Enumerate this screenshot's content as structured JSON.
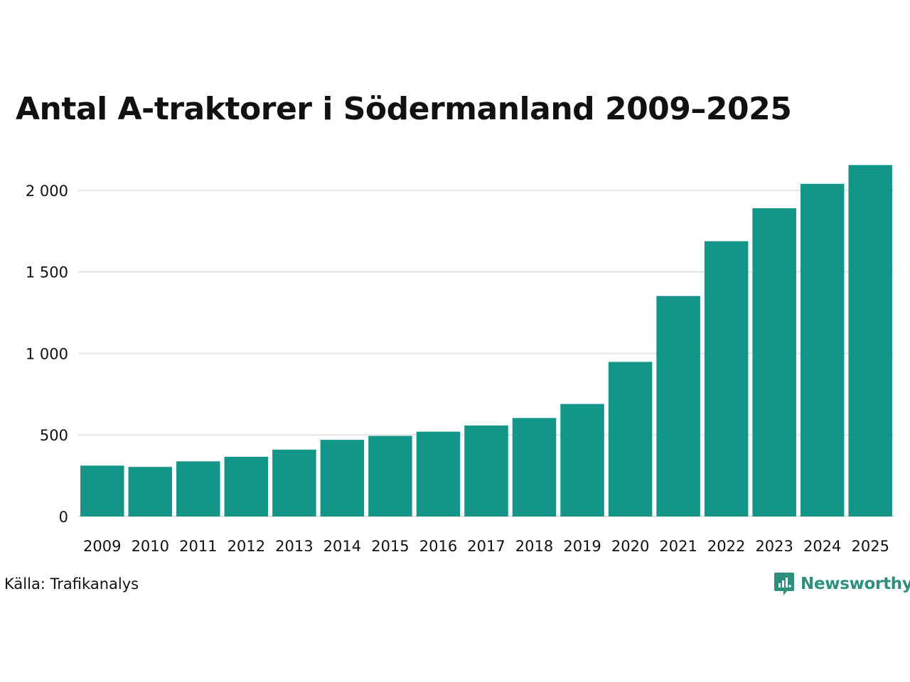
{
  "chart_data": {
    "type": "bar",
    "title": "Antal A-traktorer i Södermanland 2009–2025",
    "categories": [
      "2009",
      "2010",
      "2011",
      "2012",
      "2013",
      "2014",
      "2015",
      "2016",
      "2017",
      "2018",
      "2019",
      "2020",
      "2021",
      "2022",
      "2023",
      "2024",
      "2025"
    ],
    "values": [
      312,
      304,
      338,
      366,
      410,
      470,
      494,
      520,
      558,
      604,
      690,
      948,
      1352,
      1688,
      1890,
      2040,
      2155
    ],
    "yticks": [
      0,
      500,
      1000,
      1500,
      2000
    ],
    "ytick_labels": [
      "0",
      "500",
      "1 000",
      "1 500",
      "2 000"
    ],
    "ylim": [
      0,
      2200
    ],
    "xlabel": "",
    "ylabel": "",
    "grid": true,
    "bar_color": "#139688",
    "grid_color": "#e3e3e3"
  },
  "source": "Källa: Trafikanalys",
  "logo": {
    "text": "Newsworthy",
    "icon": "newsworthy-logo-icon",
    "color": "#2f8f7e"
  }
}
